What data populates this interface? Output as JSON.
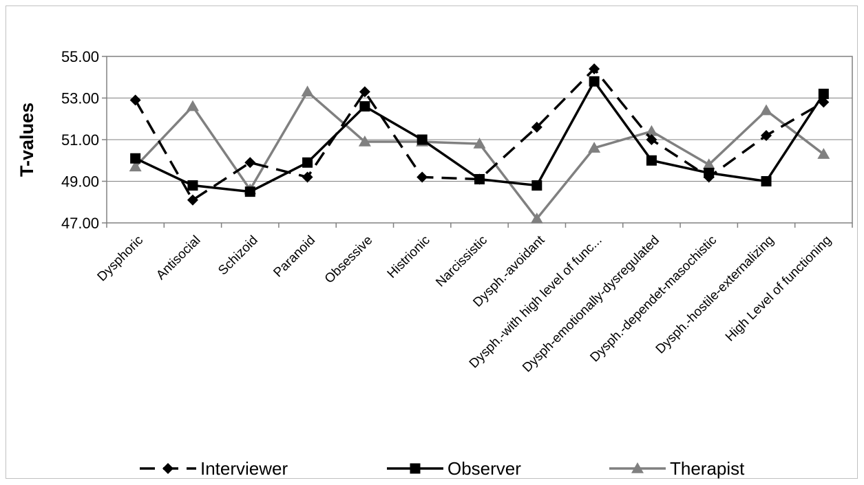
{
  "chart_data": {
    "type": "line",
    "title": "",
    "xlabel": "",
    "ylabel": "T-values",
    "ylim": [
      47,
      55
    ],
    "ytick_labels": [
      "47.00",
      "49.00",
      "51.00",
      "53.00",
      "55.00"
    ],
    "grid": "horizontal",
    "legend_position": "bottom",
    "categories": [
      "Dysphoric",
      "Antisocial",
      "Schizoid",
      "Paranoid",
      "Obsessive",
      "Histrionic",
      "Narcissistic",
      "Dysph.-avoidant",
      "Dysph.-with high level of func...",
      "Dysph-emotionally-dysregulated",
      "Dysph.-dependet-masochistic",
      "Dysph.-hostile-externalizing",
      "High Level of functioning"
    ],
    "series": [
      {
        "name": "Interviewer",
        "color": "#000000",
        "line": "dashed",
        "marker": "diamond",
        "values": [
          52.9,
          48.1,
          49.9,
          49.2,
          53.3,
          49.2,
          49.1,
          51.6,
          54.4,
          51.0,
          49.2,
          51.2,
          52.8
        ]
      },
      {
        "name": "Observer",
        "color": "#000000",
        "line": "solid",
        "marker": "square",
        "values": [
          50.1,
          48.8,
          48.5,
          49.9,
          52.6,
          51.0,
          49.1,
          48.8,
          53.8,
          50.0,
          49.4,
          49.0,
          53.2
        ]
      },
      {
        "name": "Therapist",
        "color": "#808080",
        "line": "solid",
        "marker": "triangle",
        "values": [
          49.7,
          52.6,
          48.6,
          53.3,
          50.9,
          50.9,
          50.8,
          47.2,
          50.6,
          51.4,
          49.8,
          52.4,
          50.3
        ]
      }
    ]
  }
}
